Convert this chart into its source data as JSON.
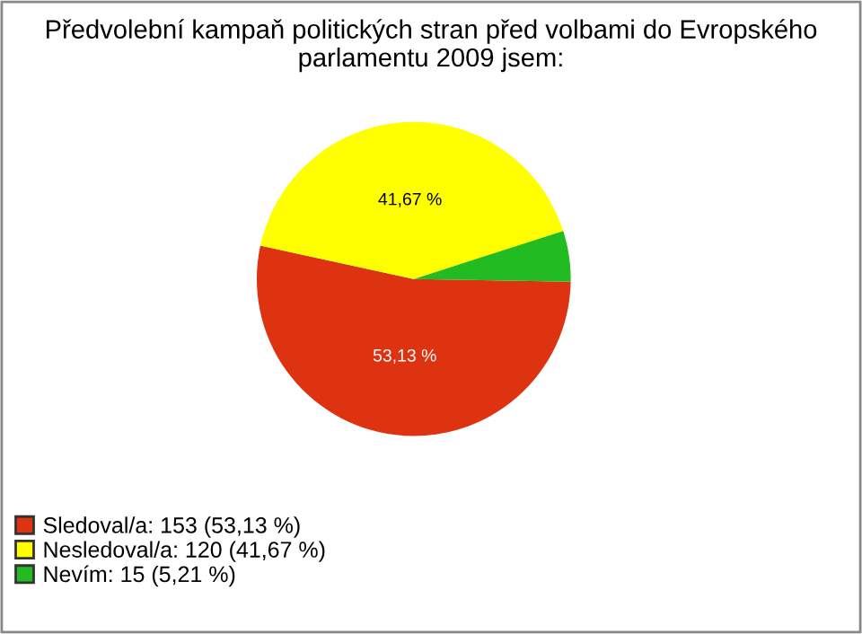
{
  "chart_data": {
    "type": "pie",
    "title": "Předvolební kampaň politických stran před volbami do Evropského parlamentu 2009 jsem:",
    "categories": [
      "Sledoval/a: 153 (53,13 %)",
      "Nesledoval/a: 120 (41,67 %)",
      "Nevím: 15 (5,21 %)"
    ],
    "values": [
      53.13,
      41.67,
      5.21
    ],
    "colors": [
      "#dd3311",
      "#ffff00",
      "#22bb22"
    ],
    "value_labels": [
      "53,13 %",
      "41,67 %",
      null
    ],
    "legend": "bottom left"
  }
}
